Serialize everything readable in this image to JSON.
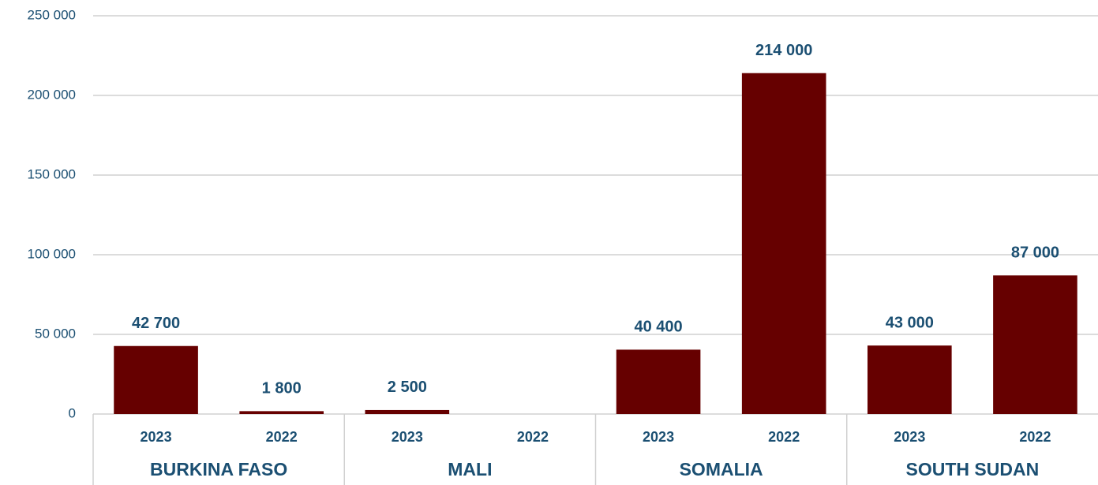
{
  "chart_data": {
    "type": "bar",
    "groups": [
      "BURKINA FASO",
      "MALI",
      "SOMALIA",
      "SOUTH SUDAN"
    ],
    "categories": [
      "2023",
      "2022",
      "2023",
      "2022",
      "2023",
      "2022",
      "2023",
      "2022"
    ],
    "values": [
      42700,
      1800,
      2500,
      null,
      40400,
      214000,
      43000,
      87000
    ],
    "value_labels": [
      "42 700",
      "1 800",
      "2 500",
      null,
      "40 400",
      "214 000",
      "43 000",
      "87 000"
    ],
    "color": "#660000",
    "ylim": [
      0,
      250000
    ],
    "yticks": [
      0,
      {
        "value": 50000,
        "label": "50 000"
      },
      {
        "value": 100000,
        "label": "100 000"
      },
      {
        "value": 150000,
        "label": "150 000"
      },
      {
        "value": 200000,
        "label": "200 000"
      },
      {
        "value": 250000,
        "label": "250 000"
      }
    ],
    "grid": true
  }
}
